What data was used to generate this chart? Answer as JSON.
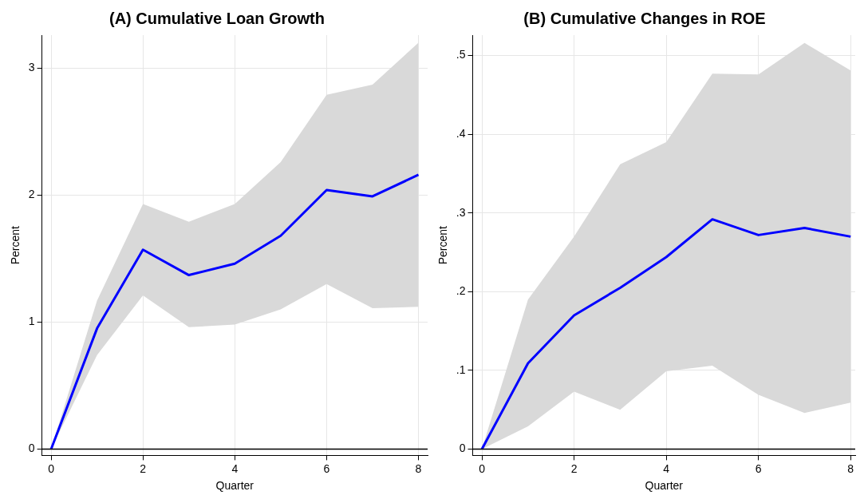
{
  "chart_data": [
    {
      "type": "line",
      "title": "(A) Cumulative Loan Growth",
      "xlabel": "Quarter",
      "ylabel": "Percent",
      "x": [
        0,
        1,
        2,
        3,
        4,
        5,
        6,
        7,
        8
      ],
      "series": [
        {
          "color": "#0000ff",
          "values": [
            0,
            0.95,
            1.57,
            1.37,
            1.46,
            1.68,
            2.04,
            1.99,
            2.16
          ],
          "lower": [
            0,
            0.74,
            1.21,
            0.96,
            0.98,
            1.1,
            1.3,
            1.11,
            1.12
          ],
          "upper": [
            0,
            1.17,
            1.93,
            1.79,
            1.93,
            2.26,
            2.79,
            2.87,
            3.2
          ]
        }
      ],
      "xlim": [
        -0.2,
        8.2
      ],
      "ylim": [
        -0.05,
        3.26
      ],
      "xticks": [
        0,
        2,
        4,
        6,
        8
      ],
      "yticks": [
        0,
        1,
        2,
        3
      ],
      "grid": true,
      "ref_lines": [
        {
          "axis": "y",
          "value": 0,
          "color": "#000000"
        }
      ]
    },
    {
      "type": "line",
      "title": "(B) Cumulative Changes in ROE",
      "xlabel": "Quarter",
      "ylabel": "Percent",
      "x": [
        0,
        1,
        2,
        3,
        4,
        5,
        6,
        7,
        8
      ],
      "series": [
        {
          "color": "#0000ff",
          "values": [
            0,
            0.109,
            0.17,
            0.205,
            0.244,
            0.292,
            0.272,
            0.281,
            0.27
          ],
          "lower": [
            0,
            0.029,
            0.073,
            0.05,
            0.099,
            0.106,
            0.069,
            0.046,
            0.059
          ],
          "upper": [
            0,
            0.19,
            0.27,
            0.362,
            0.39,
            0.477,
            0.476,
            0.516,
            0.481
          ]
        }
      ],
      "xlim": [
        -0.2,
        8.1
      ],
      "ylim": [
        -0.008,
        0.526
      ],
      "xticks": [
        0,
        2,
        4,
        6,
        8
      ],
      "yticks": [
        0,
        {
          "value": 0.1,
          "label": ".1"
        },
        {
          "value": 0.2,
          "label": ".2"
        },
        {
          "value": 0.3,
          "label": ".3"
        },
        {
          "value": 0.4,
          "label": ".4"
        },
        {
          "value": 0.5,
          "label": ".5"
        }
      ],
      "grid": true,
      "ref_lines": [
        {
          "axis": "y",
          "value": 0,
          "color": "#000000"
        }
      ]
    }
  ]
}
